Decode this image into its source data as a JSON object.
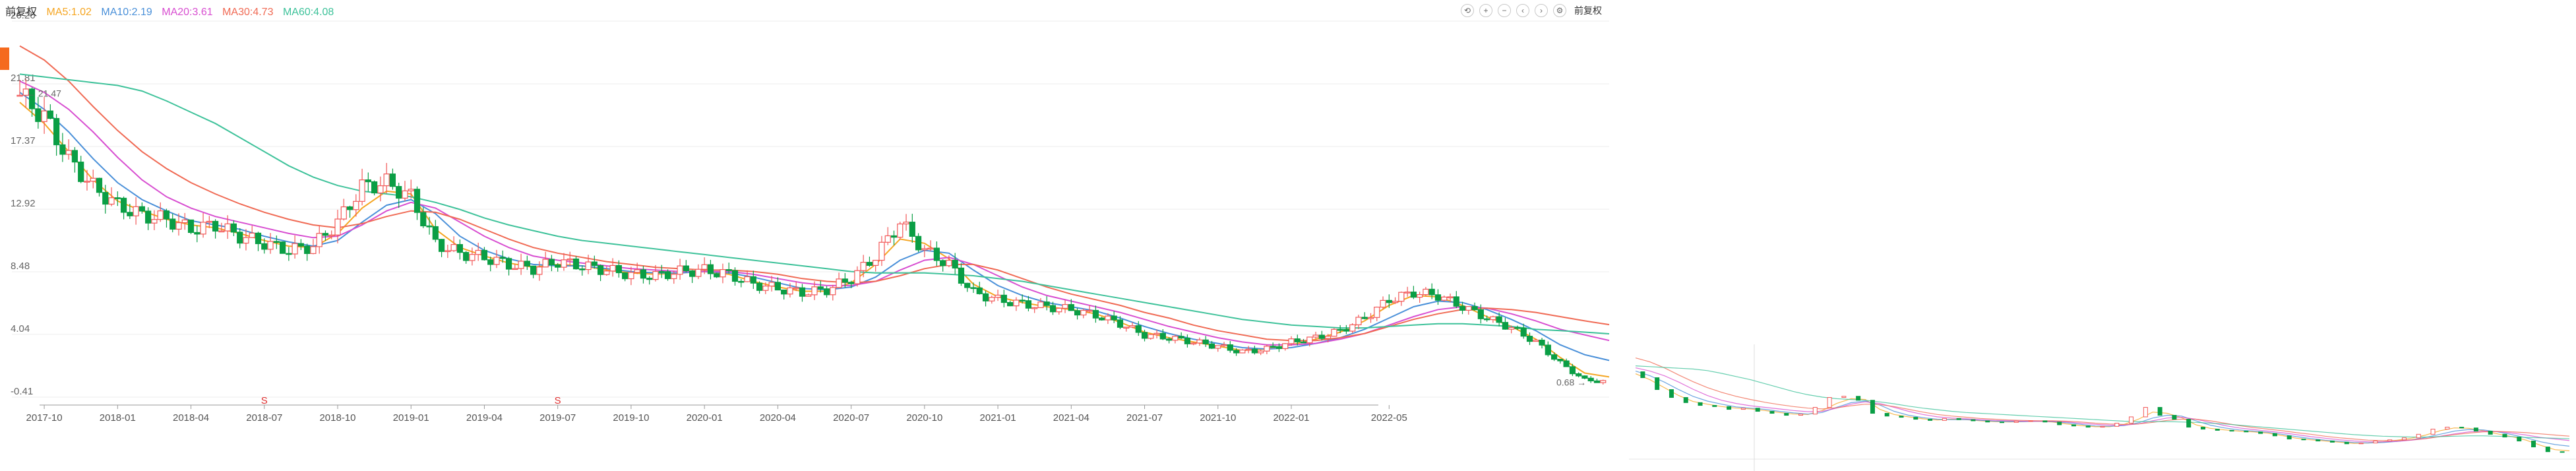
{
  "legend": {
    "period": "前复权",
    "ma5": "MA5:1.02",
    "ma10": "MA10:2.19",
    "ma20": "MA20:3.61",
    "ma30": "MA30:4.73",
    "ma60": "MA60:4.08"
  },
  "toolbar": {
    "adjust_label": "前复权",
    "icons": [
      "refresh-icon",
      "zoom-in-icon",
      "zoom-out-icon",
      "prev-icon",
      "next-icon",
      "settings-icon"
    ]
  },
  "colors": {
    "up": "#f25757",
    "down": "#0a9e45",
    "ma5": "#f5a623",
    "ma10": "#4a90d9",
    "ma20": "#d84fd1",
    "ma30": "#f06a54",
    "ma60": "#3ec29a",
    "grid": "#eeeeee",
    "axis": "#999999"
  },
  "chart_data": {
    "type": "candlestick",
    "y_ticks": [
      "26.26",
      "21.81",
      "17.37",
      "12.92",
      "8.48",
      "4.04",
      "-0.41"
    ],
    "ylim": [
      -0.41,
      26.26
    ],
    "x_ticks": [
      "2017-10",
      "2018-01",
      "2018-04",
      "2018-07",
      "2018-10",
      "2019-01",
      "2019-04",
      "2019-07",
      "2019-10",
      "2020-01",
      "2020-04",
      "2020-07",
      "2020-10",
      "2021-01",
      "2021-04",
      "2021-07",
      "2021-10",
      "2022-01",
      "2022-05"
    ],
    "annotations": [
      {
        "label": "S",
        "x": "2018-07"
      },
      {
        "label": "S",
        "x": "2019-07"
      },
      {
        "label": "21.47",
        "note": "peak"
      },
      {
        "label": "0.68",
        "note": "low"
      }
    ],
    "close_path": [
      [
        "2017-09",
        21.0
      ],
      [
        "2017-10",
        19.5
      ],
      [
        "2017-11",
        16.5
      ],
      [
        "2017-12",
        14.5
      ],
      [
        "2018-01",
        13.2
      ],
      [
        "2018-02",
        12.5
      ],
      [
        "2018-03",
        12.2
      ],
      [
        "2018-04",
        11.5
      ],
      [
        "2018-05",
        11.8
      ],
      [
        "2018-06",
        11.0
      ],
      [
        "2018-07",
        10.5
      ],
      [
        "2018-08",
        10.0
      ],
      [
        "2018-09",
        10.3
      ],
      [
        "2018-10",
        12.0
      ],
      [
        "2018-11",
        14.5
      ],
      [
        "2018-12",
        14.8
      ],
      [
        "2019-01",
        13.8
      ],
      [
        "2019-02",
        10.5
      ],
      [
        "2019-03",
        9.8
      ],
      [
        "2019-04",
        9.5
      ],
      [
        "2019-05",
        9.0
      ],
      [
        "2019-06",
        8.7
      ],
      [
        "2019-07",
        9.2
      ],
      [
        "2019-08",
        8.9
      ],
      [
        "2019-09",
        8.6
      ],
      [
        "2019-10",
        8.3
      ],
      [
        "2019-11",
        8.2
      ],
      [
        "2019-12",
        8.5
      ],
      [
        "2020-01",
        8.6
      ],
      [
        "2020-02",
        8.3
      ],
      [
        "2020-03",
        7.6
      ],
      [
        "2020-04",
        7.3
      ],
      [
        "2020-05",
        7.0
      ],
      [
        "2020-06",
        7.2
      ],
      [
        "2020-07",
        8.0
      ],
      [
        "2020-08",
        9.6
      ],
      [
        "2020-09",
        12.0
      ],
      [
        "2020-10",
        10.0
      ],
      [
        "2020-11",
        9.0
      ],
      [
        "2020-12",
        7.0
      ],
      [
        "2021-01",
        6.5
      ],
      [
        "2021-02",
        6.2
      ],
      [
        "2021-03",
        6.0
      ],
      [
        "2021-04",
        5.8
      ],
      [
        "2021-05",
        5.4
      ],
      [
        "2021-06",
        4.8
      ],
      [
        "2021-07",
        4.0
      ],
      [
        "2021-08",
        3.8
      ],
      [
        "2021-09",
        3.5
      ],
      [
        "2021-10",
        3.2
      ],
      [
        "2021-11",
        2.8
      ],
      [
        "2021-12",
        3.0
      ],
      [
        "2022-01",
        3.5
      ],
      [
        "2022-02",
        3.8
      ],
      [
        "2022-03",
        4.3
      ],
      [
        "2022-04",
        5.2
      ],
      [
        "2022-05",
        6.5
      ],
      [
        "2022-06",
        7.0
      ],
      [
        "2022-07",
        6.8
      ],
      [
        "2022-08",
        6.0
      ],
      [
        "2022-09",
        5.2
      ],
      [
        "2022-10",
        4.5
      ],
      [
        "2022-11",
        3.5
      ],
      [
        "2022-12",
        2.0
      ],
      [
        "2023-01",
        0.8
      ],
      [
        "2023-02",
        0.68
      ]
    ],
    "ma_series": [
      {
        "name": "MA5",
        "values": [
          20.5,
          19.0,
          17.0,
          15.0,
          13.5,
          12.8,
          12.2,
          11.8,
          11.6,
          11.2,
          10.7,
          10.3,
          10.2,
          11.2,
          13.0,
          14.2,
          14.0,
          11.5,
          10.2,
          9.6,
          9.1,
          8.8,
          9.0,
          8.9,
          8.6,
          8.4,
          8.3,
          8.4,
          8.5,
          8.3,
          7.8,
          7.4,
          7.1,
          7.1,
          7.7,
          9.0,
          10.8,
          10.5,
          9.4,
          7.6,
          6.7,
          6.3,
          6.0,
          5.8,
          5.5,
          4.9,
          4.2,
          3.8,
          3.5,
          3.2,
          2.9,
          3.0,
          3.3,
          3.7,
          4.2,
          5.0,
          6.1,
          6.8,
          6.7,
          6.1,
          5.3,
          4.6,
          3.7,
          2.4,
          1.3,
          1.02
        ]
      },
      {
        "name": "MA10",
        "values": [
          21.2,
          20.0,
          18.4,
          16.5,
          14.8,
          13.6,
          12.8,
          12.1,
          11.8,
          11.5,
          11.0,
          10.6,
          10.3,
          10.7,
          12.0,
          13.2,
          13.6,
          12.6,
          11.0,
          10.0,
          9.4,
          9.0,
          8.9,
          8.9,
          8.7,
          8.5,
          8.4,
          8.4,
          8.5,
          8.4,
          8.1,
          7.7,
          7.3,
          7.2,
          7.4,
          8.1,
          9.3,
          10.0,
          9.8,
          8.6,
          7.5,
          6.8,
          6.3,
          6.0,
          5.7,
          5.2,
          4.6,
          4.1,
          3.7,
          3.4,
          3.1,
          3.0,
          3.1,
          3.4,
          3.8,
          4.4,
          5.2,
          6.0,
          6.4,
          6.3,
          5.8,
          5.1,
          4.3,
          3.3,
          2.6,
          2.19
        ]
      },
      {
        "name": "MA20",
        "values": [
          22.0,
          21.2,
          20.0,
          18.4,
          16.6,
          15.0,
          13.8,
          13.0,
          12.4,
          12.0,
          11.6,
          11.2,
          10.9,
          11.0,
          11.8,
          12.8,
          13.4,
          13.0,
          12.0,
          11.0,
          10.2,
          9.6,
          9.3,
          9.1,
          8.9,
          8.7,
          8.6,
          8.5,
          8.5,
          8.5,
          8.3,
          8.0,
          7.7,
          7.5,
          7.5,
          7.8,
          8.6,
          9.3,
          9.5,
          9.0,
          8.2,
          7.4,
          6.8,
          6.4,
          6.0,
          5.6,
          5.1,
          4.6,
          4.2,
          3.8,
          3.5,
          3.3,
          3.3,
          3.4,
          3.7,
          4.1,
          4.7,
          5.3,
          5.8,
          6.0,
          5.9,
          5.5,
          5.0,
          4.4,
          4.0,
          3.61
        ]
      },
      {
        "name": "MA30",
        "values": [
          24.5,
          23.5,
          22.0,
          20.2,
          18.5,
          17.0,
          15.8,
          14.8,
          14.0,
          13.3,
          12.7,
          12.2,
          11.8,
          11.6,
          11.9,
          12.4,
          12.8,
          12.7,
          12.2,
          11.5,
          10.8,
          10.2,
          9.8,
          9.5,
          9.2,
          9.0,
          8.8,
          8.7,
          8.6,
          8.6,
          8.5,
          8.3,
          8.0,
          7.8,
          7.7,
          7.8,
          8.2,
          8.7,
          9.0,
          9.0,
          8.6,
          8.0,
          7.4,
          6.9,
          6.5,
          6.1,
          5.6,
          5.2,
          4.7,
          4.3,
          4.0,
          3.7,
          3.6,
          3.6,
          3.8,
          4.1,
          4.6,
          5.1,
          5.5,
          5.8,
          5.9,
          5.8,
          5.6,
          5.3,
          5.0,
          4.73
        ]
      },
      {
        "name": "MA60",
        "values": [
          22.5,
          22.3,
          22.1,
          21.9,
          21.7,
          21.3,
          20.6,
          19.8,
          19.0,
          18.0,
          17.0,
          16.0,
          15.2,
          14.6,
          14.2,
          14.0,
          13.8,
          13.4,
          12.9,
          12.3,
          11.8,
          11.4,
          11.0,
          10.7,
          10.5,
          10.3,
          10.1,
          9.9,
          9.7,
          9.5,
          9.3,
          9.1,
          8.9,
          8.7,
          8.5,
          8.4,
          8.4,
          8.4,
          8.3,
          8.2,
          8.0,
          7.8,
          7.5,
          7.2,
          6.9,
          6.6,
          6.3,
          6.0,
          5.7,
          5.4,
          5.1,
          4.9,
          4.7,
          4.6,
          4.5,
          4.5,
          4.6,
          4.7,
          4.8,
          4.8,
          4.7,
          4.6,
          4.4,
          4.3,
          4.2,
          4.08
        ]
      }
    ]
  }
}
